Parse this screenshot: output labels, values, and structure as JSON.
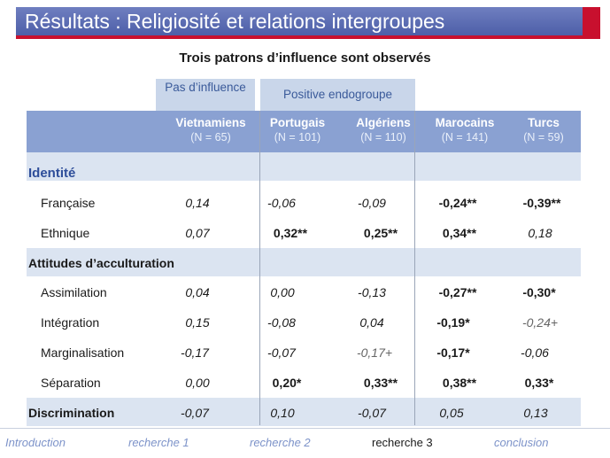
{
  "title": "Résultats : Religiosité et relations  intergroupes",
  "subtitle": "Trois patrons d’influence sont observés",
  "groups": {
    "g1": "Pas d’influence",
    "g2": "Positive endogroupe"
  },
  "columns": [
    {
      "name": "Vietnamiens",
      "count": "(N = 65)"
    },
    {
      "name": "Portugais",
      "count": "(N = 101)"
    },
    {
      "name": "Algériens",
      "count": "(N = 110)"
    },
    {
      "name": "Marocains",
      "count": "(N = 141)"
    },
    {
      "name": "Turcs",
      "count": "(N = 59)"
    }
  ],
  "sections": {
    "identite": "Identité",
    "acculturation": "Attitudes d’acculturation",
    "discrimination": "Discrimination"
  },
  "rows": {
    "francaise": {
      "label": "Française",
      "values": [
        "0,14",
        "-0,06",
        "-0,09",
        "-0,24**",
        "-0,39**"
      ]
    },
    "ethnique": {
      "label": "Ethnique",
      "values": [
        "0,07",
        "0,32**",
        "0,25**",
        "0,34**",
        "0,18"
      ]
    },
    "assimilation": {
      "label": "Assimilation",
      "values": [
        "0,04",
        "0,00",
        "-0,13",
        "-0,27**",
        "-0,30*"
      ]
    },
    "integration": {
      "label": "Intégration",
      "values": [
        "0,15",
        "-0,08",
        "0,04",
        "-0,19*",
        "-0,24+"
      ]
    },
    "marginalisation": {
      "label": "Marginalisation",
      "values": [
        "-0,17",
        "-0,07",
        "-0,17+",
        "-0,17*",
        "-0,06"
      ]
    },
    "separation": {
      "label": "Séparation",
      "values": [
        "0,00",
        "0,20*",
        "0,33**",
        "0,38**",
        "0,33*"
      ]
    },
    "discrimination": {
      "values": [
        "-0,07",
        "0,10",
        "-0,07",
        "0,05",
        "0,13"
      ]
    }
  },
  "nav": [
    "Introduction",
    "recherche 1",
    "recherche 2",
    "recherche 3",
    "conclusion"
  ],
  "nav_active": "recherche 3",
  "colors": {
    "title_bar": "#5a6bb4",
    "accent_red": "#c8102e",
    "header": "#8aa1d2",
    "band": "#dbe4f1"
  }
}
